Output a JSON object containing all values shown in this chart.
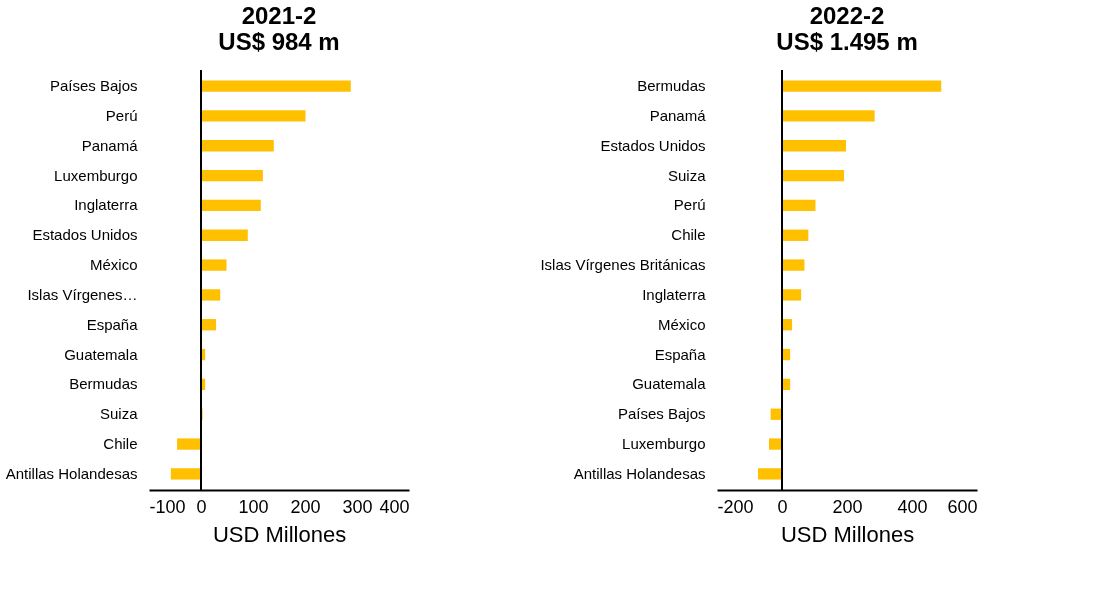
{
  "chart_data": [
    {
      "type": "bar",
      "orientation": "horizontal",
      "title": "2021-2",
      "subtitle": "US$ 984 m",
      "xlabel": "USD Millones",
      "categories": [
        "Países Bajos",
        "Perú",
        "Panamá",
        "Luxemburgo",
        "Inglaterra",
        "Estados Unidos",
        "México",
        "Islas Vírgenes…",
        "España",
        "Guatemala",
        "Bermudas",
        "Suiza",
        "Chile",
        "Antillas Holandesas"
      ],
      "values": [
        288,
        201,
        140,
        119,
        115,
        90,
        49,
        37,
        29,
        8,
        8,
        3,
        -46,
        -58
      ],
      "color": "#ffc000",
      "xlim": [
        -100,
        400
      ],
      "xticks": [
        -100,
        0,
        100,
        200,
        300,
        400
      ]
    },
    {
      "type": "bar",
      "orientation": "horizontal",
      "title": "2022-2",
      "subtitle": "US$ 1.495 m",
      "xlabel": "USD Millones",
      "categories": [
        "Bermudas",
        "Panamá",
        "Estados Unidos",
        "Suiza",
        "Perú",
        "Chile",
        "Islas Vírgenes Británicas",
        "Inglaterra",
        "México",
        "España",
        "Guatemala",
        "Países Bajos",
        "Luxemburgo",
        "Antillas Holandesas"
      ],
      "values": [
        490,
        285,
        197,
        191,
        103,
        81,
        69,
        59,
        31,
        25,
        25,
        -35,
        -40,
        -74
      ],
      "color": "#ffc000",
      "xlim": [
        -200,
        600
      ],
      "xticks": [
        -200,
        0,
        200,
        400,
        600
      ]
    }
  ]
}
